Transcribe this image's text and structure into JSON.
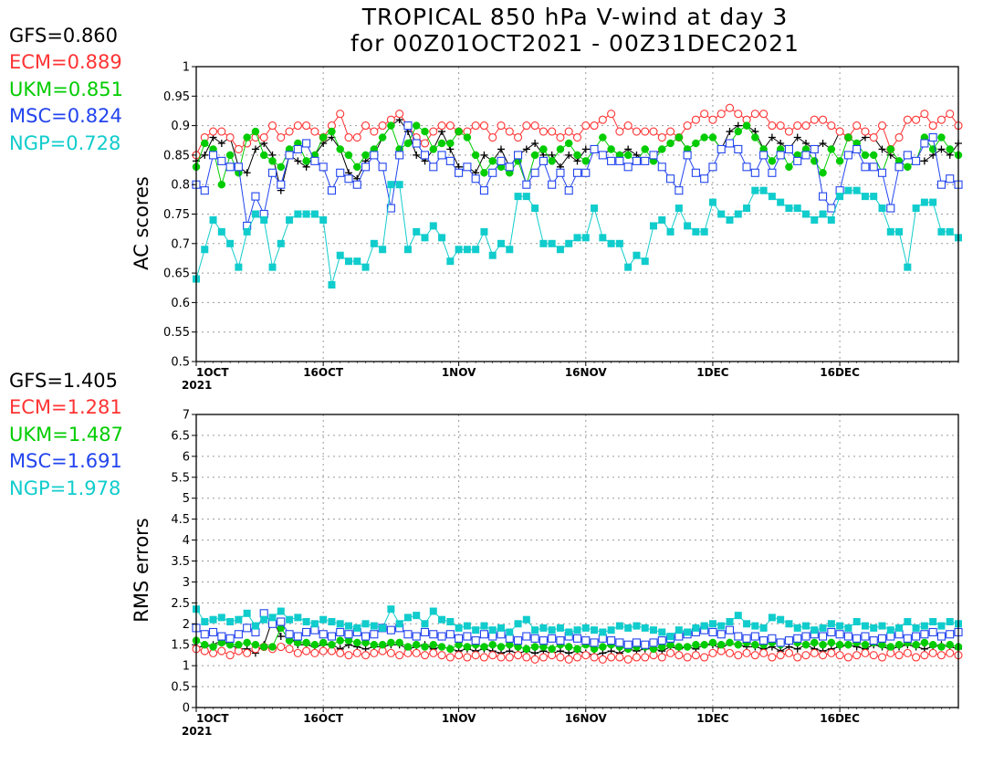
{
  "title": {
    "line1": "TROPICAL 850 hPa V-wind at day 3",
    "line2": "for 00Z01OCT2021 - 00Z31DEC2021"
  },
  "colors": {
    "GFS": "#000000",
    "ECM": "#ff3333",
    "UKM": "#00cc00",
    "MSC": "#2244ee",
    "NGP": "#11cccc"
  },
  "chart_data": [
    {
      "type": "line",
      "ylabel": "AC scores",
      "ylim": [
        0.5,
        1.0
      ],
      "yticks": [
        0.5,
        0.55,
        0.6,
        0.65,
        0.7,
        0.75,
        0.8,
        0.85,
        0.9,
        0.95,
        1
      ],
      "ytick_labels": [
        "0.5",
        "0.55",
        "0.6",
        "0.65",
        "0.7",
        "0.75",
        "0.8",
        "0.85",
        "0.9",
        "0.95",
        "1"
      ],
      "xlim": [
        1,
        91
      ],
      "xticks": [
        1,
        16,
        32,
        47,
        62,
        77
      ],
      "xtick_labels": [
        "1OCT",
        "16OCT",
        "1NOV",
        "16NOV",
        "1DEC",
        "16DEC"
      ],
      "xtick_sublabel": "2021",
      "grid": true,
      "legend_entries": [
        "GFS=0.860",
        "ECM=0.889",
        "UKM=0.851",
        "MSC=0.824",
        "NGP=0.728"
      ],
      "series": [
        {
          "name": "GFS",
          "marker": "plus",
          "values": [
            0.84,
            0.85,
            0.88,
            0.87,
            0.88,
            0.83,
            0.82,
            0.86,
            0.87,
            0.85,
            0.79,
            0.85,
            0.84,
            0.83,
            0.85,
            0.87,
            0.88,
            0.86,
            0.82,
            0.81,
            0.84,
            0.85,
            0.88,
            0.9,
            0.91,
            0.89,
            0.85,
            0.84,
            0.86,
            0.89,
            0.86,
            0.83,
            0.83,
            0.82,
            0.85,
            0.84,
            0.86,
            0.83,
            0.85,
            0.86,
            0.87,
            0.85,
            0.85,
            0.83,
            0.85,
            0.84,
            0.86,
            0.86,
            0.85,
            0.86,
            0.85,
            0.86,
            0.85,
            0.84,
            0.85,
            0.86,
            0.87,
            0.88,
            0.86,
            0.87,
            0.88,
            0.88,
            0.86,
            0.89,
            0.9,
            0.9,
            0.89,
            0.86,
            0.88,
            0.87,
            0.86,
            0.88,
            0.87,
            0.86,
            0.87,
            0.86,
            0.89,
            0.88,
            0.87,
            0.88,
            0.88,
            0.86,
            0.85,
            0.84,
            0.83,
            0.84,
            0.84,
            0.85,
            0.86,
            0.85,
            0.87
          ]
        },
        {
          "name": "ECM",
          "marker": "circle",
          "values": [
            0.85,
            0.88,
            0.89,
            0.89,
            0.88,
            0.86,
            0.87,
            0.88,
            0.88,
            0.9,
            0.88,
            0.89,
            0.9,
            0.9,
            0.89,
            0.88,
            0.9,
            0.92,
            0.88,
            0.88,
            0.9,
            0.89,
            0.9,
            0.91,
            0.92,
            0.9,
            0.88,
            0.87,
            0.89,
            0.9,
            0.9,
            0.89,
            0.89,
            0.9,
            0.9,
            0.88,
            0.9,
            0.89,
            0.88,
            0.9,
            0.9,
            0.89,
            0.89,
            0.88,
            0.89,
            0.88,
            0.9,
            0.9,
            0.91,
            0.92,
            0.89,
            0.9,
            0.89,
            0.89,
            0.89,
            0.88,
            0.89,
            0.88,
            0.9,
            0.91,
            0.92,
            0.91,
            0.92,
            0.93,
            0.92,
            0.91,
            0.92,
            0.92,
            0.9,
            0.9,
            0.89,
            0.9,
            0.9,
            0.91,
            0.91,
            0.9,
            0.89,
            0.88,
            0.9,
            0.89,
            0.88,
            0.9,
            0.86,
            0.88,
            0.91,
            0.91,
            0.92,
            0.9,
            0.91,
            0.92,
            0.9
          ]
        },
        {
          "name": "UKM",
          "marker": "dot",
          "values": [
            0.83,
            0.87,
            0.86,
            0.8,
            0.85,
            0.82,
            0.88,
            0.89,
            0.85,
            0.84,
            0.83,
            0.86,
            0.87,
            0.84,
            0.85,
            0.88,
            0.89,
            0.86,
            0.85,
            0.83,
            0.85,
            0.86,
            0.88,
            0.9,
            0.86,
            0.87,
            0.9,
            0.89,
            0.86,
            0.87,
            0.87,
            0.89,
            0.88,
            0.85,
            0.82,
            0.84,
            0.83,
            0.82,
            0.84,
            0.8,
            0.85,
            0.86,
            0.84,
            0.86,
            0.87,
            0.85,
            0.84,
            0.86,
            0.88,
            0.86,
            0.85,
            0.85,
            0.84,
            0.86,
            0.84,
            0.86,
            0.87,
            0.88,
            0.86,
            0.87,
            0.88,
            0.88,
            0.86,
            0.87,
            0.89,
            0.9,
            0.88,
            0.86,
            0.84,
            0.86,
            0.83,
            0.85,
            0.86,
            0.84,
            0.82,
            0.86,
            0.84,
            0.88,
            0.87,
            0.85,
            0.85,
            0.82,
            0.86,
            0.84,
            0.83,
            0.84,
            0.88,
            0.86,
            0.88,
            0.86,
            0.85
          ]
        },
        {
          "name": "MSC",
          "marker": "square",
          "values": [
            0.8,
            0.79,
            0.85,
            0.84,
            0.83,
            0.83,
            0.73,
            0.78,
            0.75,
            0.82,
            0.8,
            0.85,
            0.86,
            0.87,
            0.84,
            0.83,
            0.79,
            0.82,
            0.81,
            0.8,
            0.83,
            0.85,
            0.83,
            0.76,
            0.85,
            0.9,
            0.87,
            0.85,
            0.83,
            0.85,
            0.84,
            0.82,
            0.83,
            0.81,
            0.79,
            0.82,
            0.84,
            0.83,
            0.85,
            0.8,
            0.82,
            0.84,
            0.8,
            0.82,
            0.79,
            0.82,
            0.82,
            0.86,
            0.85,
            0.84,
            0.84,
            0.83,
            0.84,
            0.84,
            0.85,
            0.83,
            0.81,
            0.79,
            0.85,
            0.82,
            0.81,
            0.83,
            0.86,
            0.87,
            0.86,
            0.83,
            0.82,
            0.85,
            0.82,
            0.85,
            0.86,
            0.84,
            0.85,
            0.86,
            0.78,
            0.76,
            0.79,
            0.85,
            0.86,
            0.83,
            0.83,
            0.82,
            0.76,
            0.83,
            0.85,
            0.84,
            0.87,
            0.88,
            0.8,
            0.81,
            0.8
          ]
        },
        {
          "name": "NGP",
          "marker": "filled-square",
          "values": [
            0.64,
            0.69,
            0.74,
            0.72,
            0.7,
            0.66,
            0.72,
            0.75,
            0.74,
            0.66,
            0.7,
            0.74,
            0.75,
            0.75,
            0.75,
            0.74,
            0.63,
            0.68,
            0.67,
            0.67,
            0.66,
            0.7,
            0.69,
            0.8,
            0.8,
            0.69,
            0.72,
            0.71,
            0.73,
            0.71,
            0.67,
            0.69,
            0.69,
            0.69,
            0.72,
            0.68,
            0.7,
            0.69,
            0.78,
            0.78,
            0.76,
            0.7,
            0.7,
            0.69,
            0.7,
            0.71,
            0.71,
            0.76,
            0.71,
            0.7,
            0.7,
            0.66,
            0.68,
            0.67,
            0.73,
            0.74,
            0.72,
            0.76,
            0.73,
            0.72,
            0.72,
            0.77,
            0.75,
            0.74,
            0.75,
            0.76,
            0.79,
            0.79,
            0.78,
            0.77,
            0.76,
            0.76,
            0.75,
            0.74,
            0.75,
            0.74,
            0.78,
            0.79,
            0.79,
            0.78,
            0.78,
            0.76,
            0.72,
            0.72,
            0.66,
            0.76,
            0.77,
            0.77,
            0.72,
            0.72,
            0.71
          ]
        }
      ]
    },
    {
      "type": "line",
      "ylabel": "RMS errors",
      "ylim": [
        0,
        7
      ],
      "yticks": [
        0,
        0.5,
        1,
        1.5,
        2,
        2.5,
        3,
        3.5,
        4,
        4.5,
        5,
        5.5,
        6,
        6.5,
        7
      ],
      "ytick_labels": [
        "0",
        "0.5",
        "1",
        "1.5",
        "2",
        "2.5",
        "3",
        "3.5",
        "4",
        "4.5",
        "5",
        "5.5",
        "6",
        "6.5",
        "7"
      ],
      "xlim": [
        1,
        91
      ],
      "xticks": [
        1,
        16,
        32,
        47,
        62,
        77
      ],
      "xtick_labels": [
        "1OCT",
        "16OCT",
        "1NOV",
        "16NOV",
        "1DEC",
        "16DEC"
      ],
      "xtick_sublabel": "2021",
      "grid": true,
      "legend_entries": [
        "GFS=1.405",
        "ECM=1.281",
        "UKM=1.487",
        "MSC=1.691",
        "NGP=1.978"
      ],
      "series": [
        {
          "name": "GFS",
          "marker": "plus",
          "values": [
            1.45,
            1.45,
            1.5,
            1.6,
            1.5,
            1.4,
            1.4,
            1.3,
            1.5,
            2.1,
            1.7,
            1.7,
            1.5,
            1.5,
            1.45,
            1.5,
            1.5,
            1.4,
            1.5,
            1.45,
            1.4,
            1.45,
            1.45,
            1.5,
            1.5,
            1.4,
            1.45,
            1.5,
            1.4,
            1.45,
            1.4,
            1.35,
            1.4,
            1.35,
            1.4,
            1.35,
            1.3,
            1.35,
            1.3,
            1.35,
            1.3,
            1.35,
            1.3,
            1.35,
            1.3,
            1.35,
            1.3,
            1.25,
            1.3,
            1.35,
            1.3,
            1.4,
            1.35,
            1.4,
            1.4,
            1.35,
            1.45,
            1.4,
            1.45,
            1.4,
            1.5,
            1.5,
            1.4,
            1.55,
            1.5,
            1.45,
            1.45,
            1.4,
            1.45,
            1.35,
            1.45,
            1.4,
            1.5,
            1.4,
            1.35,
            1.4,
            1.45,
            1.5,
            1.45,
            1.4,
            1.5,
            1.45,
            1.4,
            1.45,
            1.5,
            1.45,
            1.4,
            1.45,
            1.5,
            1.45,
            1.4
          ]
        },
        {
          "name": "ECM",
          "marker": "circle",
          "values": [
            1.4,
            1.35,
            1.3,
            1.35,
            1.25,
            1.35,
            1.3,
            1.4,
            1.45,
            1.4,
            1.45,
            1.4,
            1.3,
            1.35,
            1.3,
            1.35,
            1.35,
            1.3,
            1.25,
            1.3,
            1.25,
            1.3,
            1.35,
            1.3,
            1.25,
            1.3,
            1.3,
            1.25,
            1.3,
            1.25,
            1.2,
            1.25,
            1.2,
            1.25,
            1.2,
            1.25,
            1.2,
            1.2,
            1.25,
            1.2,
            1.15,
            1.2,
            1.25,
            1.2,
            1.15,
            1.2,
            1.25,
            1.2,
            1.15,
            1.2,
            1.2,
            1.15,
            1.2,
            1.2,
            1.25,
            1.2,
            1.3,
            1.25,
            1.2,
            1.25,
            1.2,
            1.3,
            1.35,
            1.3,
            1.25,
            1.3,
            1.25,
            1.3,
            1.2,
            1.25,
            1.3,
            1.2,
            1.25,
            1.3,
            1.25,
            1.3,
            1.25,
            1.2,
            1.25,
            1.3,
            1.25,
            1.2,
            1.3,
            1.25,
            1.3,
            1.2,
            1.25,
            1.3,
            1.25,
            1.3,
            1.25
          ]
        },
        {
          "name": "UKM",
          "marker": "dot",
          "values": [
            1.6,
            1.5,
            1.45,
            1.55,
            1.5,
            1.5,
            1.55,
            1.5,
            1.45,
            1.45,
            1.9,
            1.6,
            1.55,
            1.55,
            1.5,
            1.55,
            1.5,
            1.6,
            1.6,
            1.55,
            1.55,
            1.5,
            1.5,
            1.55,
            1.55,
            1.45,
            1.5,
            1.45,
            1.5,
            1.45,
            1.4,
            1.5,
            1.45,
            1.5,
            1.45,
            1.5,
            1.45,
            1.5,
            1.45,
            1.4,
            1.45,
            1.45,
            1.4,
            1.5,
            1.45,
            1.4,
            1.5,
            1.4,
            1.45,
            1.5,
            1.45,
            1.4,
            1.45,
            1.45,
            1.4,
            1.45,
            1.5,
            1.45,
            1.45,
            1.5,
            1.5,
            1.55,
            1.5,
            1.55,
            1.5,
            1.55,
            1.5,
            1.5,
            1.55,
            1.5,
            1.6,
            1.55,
            1.5,
            1.55,
            1.5,
            1.55,
            1.5,
            1.5,
            1.55,
            1.5,
            1.55,
            1.5,
            1.45,
            1.5,
            1.55,
            1.5,
            1.55,
            1.5,
            1.45,
            1.5,
            1.45
          ]
        },
        {
          "name": "MSC",
          "marker": "square",
          "values": [
            1.9,
            1.75,
            1.8,
            1.7,
            1.65,
            1.75,
            1.9,
            1.8,
            2.25,
            2.0,
            2.05,
            1.75,
            1.7,
            1.8,
            1.85,
            1.75,
            1.7,
            1.8,
            1.75,
            1.8,
            1.7,
            1.75,
            1.9,
            1.85,
            1.9,
            1.75,
            1.7,
            1.8,
            1.75,
            1.7,
            1.75,
            1.65,
            1.7,
            1.6,
            1.75,
            1.7,
            1.75,
            1.65,
            1.6,
            1.7,
            1.65,
            1.6,
            1.65,
            1.6,
            1.7,
            1.65,
            1.6,
            1.55,
            1.65,
            1.6,
            1.55,
            1.5,
            1.55,
            1.5,
            1.55,
            1.6,
            1.65,
            1.7,
            1.75,
            1.8,
            1.85,
            1.8,
            1.75,
            1.85,
            1.7,
            1.65,
            1.7,
            1.6,
            1.65,
            1.55,
            1.6,
            1.65,
            1.7,
            1.75,
            1.7,
            1.8,
            1.75,
            1.7,
            1.65,
            1.7,
            1.6,
            1.65,
            1.7,
            1.75,
            1.65,
            1.7,
            1.75,
            1.8,
            1.7,
            1.75,
            1.8
          ]
        },
        {
          "name": "NGP",
          "marker": "filled-square",
          "values": [
            2.35,
            2.05,
            2.1,
            2.15,
            2.05,
            2.1,
            2.25,
            1.95,
            2.1,
            2.15,
            2.3,
            2.1,
            2.15,
            2.05,
            2.0,
            2.1,
            2.05,
            2.0,
            1.95,
            1.9,
            2.0,
            1.95,
            1.9,
            2.35,
            2.0,
            2.15,
            2.2,
            2.0,
            2.3,
            2.1,
            2.05,
            1.9,
            1.95,
            1.85,
            1.95,
            1.85,
            1.9,
            1.8,
            2.0,
            2.1,
            1.85,
            1.9,
            1.85,
            1.9,
            1.8,
            1.85,
            1.9,
            1.85,
            1.8,
            1.85,
            1.95,
            1.9,
            1.95,
            1.9,
            1.85,
            1.8,
            1.7,
            1.85,
            1.8,
            1.9,
            1.95,
            2.0,
            1.95,
            2.05,
            2.2,
            2.0,
            1.95,
            1.9,
            2.15,
            2.1,
            2.0,
            1.9,
            1.95,
            1.85,
            1.9,
            2.0,
            1.95,
            1.9,
            2.05,
            1.95,
            1.9,
            1.95,
            1.85,
            1.9,
            2.05,
            1.9,
            1.95,
            2.05,
            1.95,
            2.05,
            2.0
          ]
        }
      ]
    }
  ]
}
